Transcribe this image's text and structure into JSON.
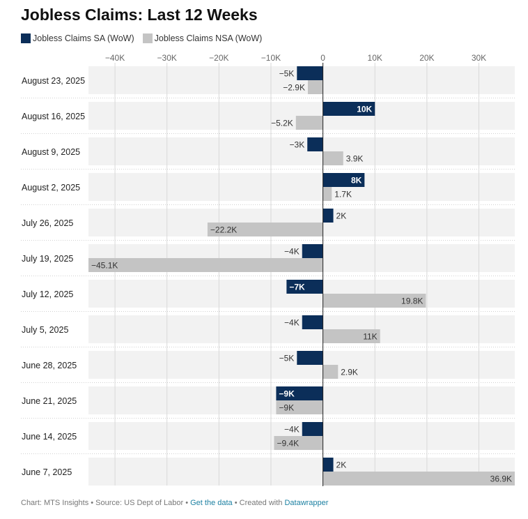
{
  "title": "Jobless Claims: Last 12 Weeks",
  "colors": {
    "sa": "#0b2e59",
    "nsa": "#c4c4c4",
    "row_bg": "#f2f2f2",
    "link": "#1d81a2"
  },
  "footer": {
    "chart_credit": "Chart: MTS Insights",
    "source": "Source: US Dept of Labor",
    "get_data": "Get the data",
    "created_with": "Created with",
    "tool": "Datawrapper"
  },
  "chart_data": {
    "type": "bar",
    "orientation": "horizontal",
    "categories": [
      "August 23, 2025",
      "August 16, 2025",
      "August 9, 2025",
      "August 2, 2025",
      "July 26, 2025",
      "July 19, 2025",
      "July 12, 2025",
      "July 5, 2025",
      "June 28, 2025",
      "June 21, 2025",
      "June 14, 2025",
      "June 7, 2025"
    ],
    "series": [
      {
        "name": "Jobless Claims SA (WoW)",
        "values": [
          -5000,
          10000,
          -3000,
          8000,
          2000,
          -4000,
          -7000,
          -4000,
          -5000,
          -9000,
          -4000,
          2000
        ],
        "labels": [
          "−5K",
          "10K",
          "−3K",
          "8K",
          "2K",
          "−4K",
          "−7K",
          "−4K",
          "−5K",
          "−9K",
          "−4K",
          "2K"
        ]
      },
      {
        "name": "Jobless Claims NSA (WoW)",
        "values": [
          -2900,
          -5200,
          3900,
          1700,
          -22200,
          -45100,
          19800,
          11000,
          2900,
          -9000,
          -9400,
          36900
        ],
        "labels": [
          "−2.9K",
          "−5.2K",
          "3.9K",
          "1.7K",
          "−22.2K",
          "−45.1K",
          "19.8K",
          "11K",
          "2.9K",
          "−9K",
          "−9.4K",
          "36.9K"
        ]
      }
    ],
    "xticks": [
      -40000,
      -30000,
      -20000,
      -10000,
      0,
      10000,
      20000,
      30000
    ],
    "xtick_labels": [
      "−40K",
      "−30K",
      "−20K",
      "−10K",
      "0",
      "10K",
      "20K",
      "30K"
    ],
    "xlim": [
      -45100,
      36900
    ],
    "grid": true,
    "legend": "top-left"
  }
}
